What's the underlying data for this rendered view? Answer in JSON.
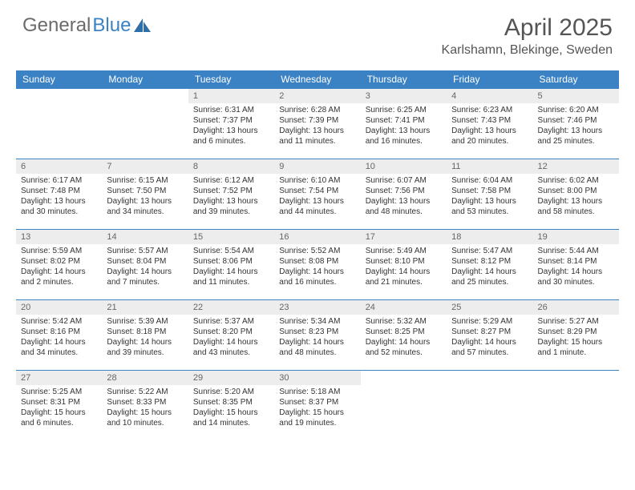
{
  "logo": {
    "text_gray": "General",
    "text_blue": "Blue"
  },
  "title": "April 2025",
  "location": "Karlshamn, Blekinge, Sweden",
  "colors": {
    "header_bg": "#3b82c4",
    "header_text": "#ffffff",
    "daynum_bg": "#ededed",
    "daynum_text": "#666666",
    "body_text": "#333333",
    "title_text": "#555555",
    "row_border": "#3b82c4"
  },
  "weekdays": [
    "Sunday",
    "Monday",
    "Tuesday",
    "Wednesday",
    "Thursday",
    "Friday",
    "Saturday"
  ],
  "weeks": [
    [
      null,
      null,
      {
        "n": "1",
        "sr": "Sunrise: 6:31 AM",
        "ss": "Sunset: 7:37 PM",
        "dl": "Daylight: 13 hours and 6 minutes."
      },
      {
        "n": "2",
        "sr": "Sunrise: 6:28 AM",
        "ss": "Sunset: 7:39 PM",
        "dl": "Daylight: 13 hours and 11 minutes."
      },
      {
        "n": "3",
        "sr": "Sunrise: 6:25 AM",
        "ss": "Sunset: 7:41 PM",
        "dl": "Daylight: 13 hours and 16 minutes."
      },
      {
        "n": "4",
        "sr": "Sunrise: 6:23 AM",
        "ss": "Sunset: 7:43 PM",
        "dl": "Daylight: 13 hours and 20 minutes."
      },
      {
        "n": "5",
        "sr": "Sunrise: 6:20 AM",
        "ss": "Sunset: 7:46 PM",
        "dl": "Daylight: 13 hours and 25 minutes."
      }
    ],
    [
      {
        "n": "6",
        "sr": "Sunrise: 6:17 AM",
        "ss": "Sunset: 7:48 PM",
        "dl": "Daylight: 13 hours and 30 minutes."
      },
      {
        "n": "7",
        "sr": "Sunrise: 6:15 AM",
        "ss": "Sunset: 7:50 PM",
        "dl": "Daylight: 13 hours and 34 minutes."
      },
      {
        "n": "8",
        "sr": "Sunrise: 6:12 AM",
        "ss": "Sunset: 7:52 PM",
        "dl": "Daylight: 13 hours and 39 minutes."
      },
      {
        "n": "9",
        "sr": "Sunrise: 6:10 AM",
        "ss": "Sunset: 7:54 PM",
        "dl": "Daylight: 13 hours and 44 minutes."
      },
      {
        "n": "10",
        "sr": "Sunrise: 6:07 AM",
        "ss": "Sunset: 7:56 PM",
        "dl": "Daylight: 13 hours and 48 minutes."
      },
      {
        "n": "11",
        "sr": "Sunrise: 6:04 AM",
        "ss": "Sunset: 7:58 PM",
        "dl": "Daylight: 13 hours and 53 minutes."
      },
      {
        "n": "12",
        "sr": "Sunrise: 6:02 AM",
        "ss": "Sunset: 8:00 PM",
        "dl": "Daylight: 13 hours and 58 minutes."
      }
    ],
    [
      {
        "n": "13",
        "sr": "Sunrise: 5:59 AM",
        "ss": "Sunset: 8:02 PM",
        "dl": "Daylight: 14 hours and 2 minutes."
      },
      {
        "n": "14",
        "sr": "Sunrise: 5:57 AM",
        "ss": "Sunset: 8:04 PM",
        "dl": "Daylight: 14 hours and 7 minutes."
      },
      {
        "n": "15",
        "sr": "Sunrise: 5:54 AM",
        "ss": "Sunset: 8:06 PM",
        "dl": "Daylight: 14 hours and 11 minutes."
      },
      {
        "n": "16",
        "sr": "Sunrise: 5:52 AM",
        "ss": "Sunset: 8:08 PM",
        "dl": "Daylight: 14 hours and 16 minutes."
      },
      {
        "n": "17",
        "sr": "Sunrise: 5:49 AM",
        "ss": "Sunset: 8:10 PM",
        "dl": "Daylight: 14 hours and 21 minutes."
      },
      {
        "n": "18",
        "sr": "Sunrise: 5:47 AM",
        "ss": "Sunset: 8:12 PM",
        "dl": "Daylight: 14 hours and 25 minutes."
      },
      {
        "n": "19",
        "sr": "Sunrise: 5:44 AM",
        "ss": "Sunset: 8:14 PM",
        "dl": "Daylight: 14 hours and 30 minutes."
      }
    ],
    [
      {
        "n": "20",
        "sr": "Sunrise: 5:42 AM",
        "ss": "Sunset: 8:16 PM",
        "dl": "Daylight: 14 hours and 34 minutes."
      },
      {
        "n": "21",
        "sr": "Sunrise: 5:39 AM",
        "ss": "Sunset: 8:18 PM",
        "dl": "Daylight: 14 hours and 39 minutes."
      },
      {
        "n": "22",
        "sr": "Sunrise: 5:37 AM",
        "ss": "Sunset: 8:20 PM",
        "dl": "Daylight: 14 hours and 43 minutes."
      },
      {
        "n": "23",
        "sr": "Sunrise: 5:34 AM",
        "ss": "Sunset: 8:23 PM",
        "dl": "Daylight: 14 hours and 48 minutes."
      },
      {
        "n": "24",
        "sr": "Sunrise: 5:32 AM",
        "ss": "Sunset: 8:25 PM",
        "dl": "Daylight: 14 hours and 52 minutes."
      },
      {
        "n": "25",
        "sr": "Sunrise: 5:29 AM",
        "ss": "Sunset: 8:27 PM",
        "dl": "Daylight: 14 hours and 57 minutes."
      },
      {
        "n": "26",
        "sr": "Sunrise: 5:27 AM",
        "ss": "Sunset: 8:29 PM",
        "dl": "Daylight: 15 hours and 1 minute."
      }
    ],
    [
      {
        "n": "27",
        "sr": "Sunrise: 5:25 AM",
        "ss": "Sunset: 8:31 PM",
        "dl": "Daylight: 15 hours and 6 minutes."
      },
      {
        "n": "28",
        "sr": "Sunrise: 5:22 AM",
        "ss": "Sunset: 8:33 PM",
        "dl": "Daylight: 15 hours and 10 minutes."
      },
      {
        "n": "29",
        "sr": "Sunrise: 5:20 AM",
        "ss": "Sunset: 8:35 PM",
        "dl": "Daylight: 15 hours and 14 minutes."
      },
      {
        "n": "30",
        "sr": "Sunrise: 5:18 AM",
        "ss": "Sunset: 8:37 PM",
        "dl": "Daylight: 15 hours and 19 minutes."
      },
      null,
      null,
      null
    ]
  ]
}
